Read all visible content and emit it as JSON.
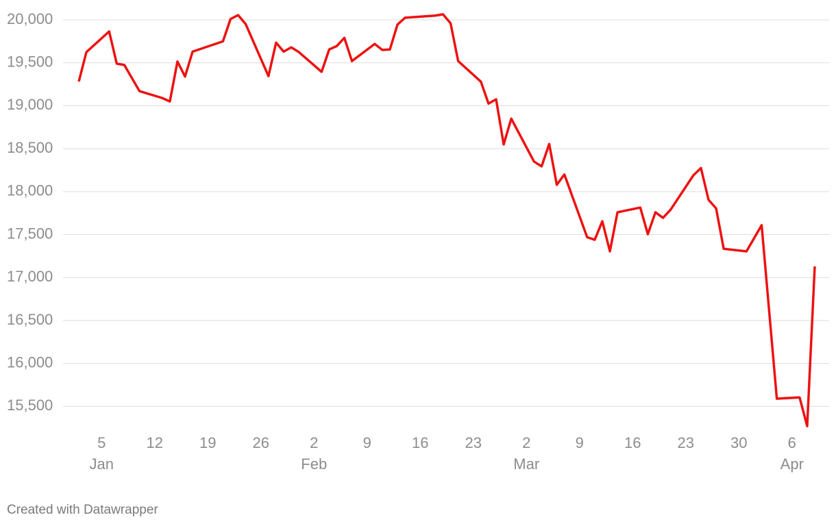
{
  "chart_data": {
    "type": "line",
    "x": [
      "01-02",
      "01-03",
      "01-06",
      "01-07",
      "01-08",
      "01-10",
      "01-13",
      "01-14",
      "01-15",
      "01-16",
      "01-17",
      "01-21",
      "01-22",
      "01-23",
      "01-24",
      "01-27",
      "01-28",
      "01-29",
      "01-30",
      "01-31",
      "02-03",
      "02-04",
      "02-05",
      "02-06",
      "02-07",
      "02-10",
      "02-11",
      "02-12",
      "02-13",
      "02-14",
      "02-18",
      "02-19",
      "02-20",
      "02-21",
      "02-24",
      "02-25",
      "02-26",
      "02-27",
      "02-28",
      "03-03",
      "03-04",
      "03-05",
      "03-06",
      "03-07",
      "03-10",
      "03-11",
      "03-12",
      "03-13",
      "03-14",
      "03-17",
      "03-18",
      "03-19",
      "03-20",
      "03-21",
      "03-24",
      "03-25",
      "03-26",
      "03-27",
      "03-28",
      "03-31",
      "04-02",
      "04-04",
      "04-07",
      "04-08",
      "04-09"
    ],
    "series": [
      {
        "color": "#ee1111",
        "values": [
          19282,
          19625,
          19865,
          19490,
          19475,
          19170,
          19090,
          19050,
          19515,
          19340,
          19630,
          19750,
          20010,
          20055,
          19950,
          19345,
          19735,
          19630,
          19680,
          19625,
          19395,
          19655,
          19695,
          19790,
          19520,
          19720,
          19650,
          19655,
          19945,
          20025,
          20050,
          20065,
          19960,
          19520,
          19280,
          19025,
          19075,
          18550,
          18850,
          18350,
          18295,
          18555,
          18080,
          18200,
          17470,
          17440,
          17655,
          17305,
          17760,
          17815,
          17505,
          17760,
          17695,
          17790,
          18190,
          18275,
          17905,
          17805,
          17335,
          17305,
          17610,
          15590,
          15605,
          15270,
          17130
        ]
      }
    ],
    "xlim": [
      "01-02",
      "04-09"
    ],
    "xticks": [
      {
        "value": "01-05",
        "label": "5"
      },
      {
        "value": "01-12",
        "label": "12"
      },
      {
        "value": "01-19",
        "label": "19"
      },
      {
        "value": "01-26",
        "label": "26"
      },
      {
        "value": "02-02",
        "label": "2"
      },
      {
        "value": "02-09",
        "label": "9"
      },
      {
        "value": "02-16",
        "label": "16"
      },
      {
        "value": "02-23",
        "label": "23"
      },
      {
        "value": "03-02",
        "label": "2"
      },
      {
        "value": "03-09",
        "label": "9"
      },
      {
        "value": "03-16",
        "label": "16"
      },
      {
        "value": "03-23",
        "label": "23"
      },
      {
        "value": "03-30",
        "label": "30"
      },
      {
        "value": "04-06",
        "label": "6"
      }
    ],
    "xtick_months": [
      {
        "value": "01-05",
        "label": "Jan"
      },
      {
        "value": "02-02",
        "label": "Feb"
      },
      {
        "value": "03-02",
        "label": "Mar"
      },
      {
        "value": "04-06",
        "label": "Apr"
      }
    ],
    "ylim": [
      15200,
      20000
    ],
    "yticks": [
      {
        "value": 15500,
        "label": "15,500"
      },
      {
        "value": 16000,
        "label": "16,000"
      },
      {
        "value": 16500,
        "label": "16,500"
      },
      {
        "value": 17000,
        "label": "17,000"
      },
      {
        "value": 17500,
        "label": "17,500"
      },
      {
        "value": 18000,
        "label": "18,000"
      },
      {
        "value": 18500,
        "label": "18,500"
      },
      {
        "value": 19000,
        "label": "19,000"
      },
      {
        "value": 19500,
        "label": "19,500"
      },
      {
        "value": 20000,
        "label": "20,000"
      }
    ],
    "grid": true,
    "credit": "Created with Datawrapper"
  }
}
